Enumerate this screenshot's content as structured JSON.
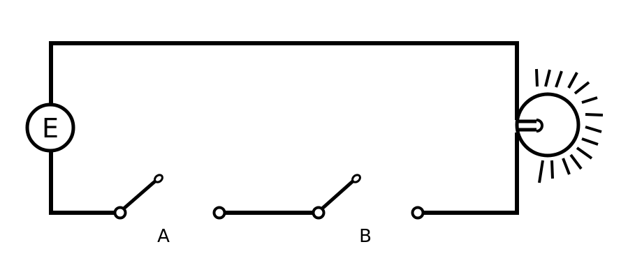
{
  "source": {
    "label": "E"
  },
  "switches": [
    {
      "label": "A",
      "state": "open"
    },
    {
      "label": "B",
      "state": "open"
    }
  ],
  "bulb": {
    "state": "lit"
  }
}
